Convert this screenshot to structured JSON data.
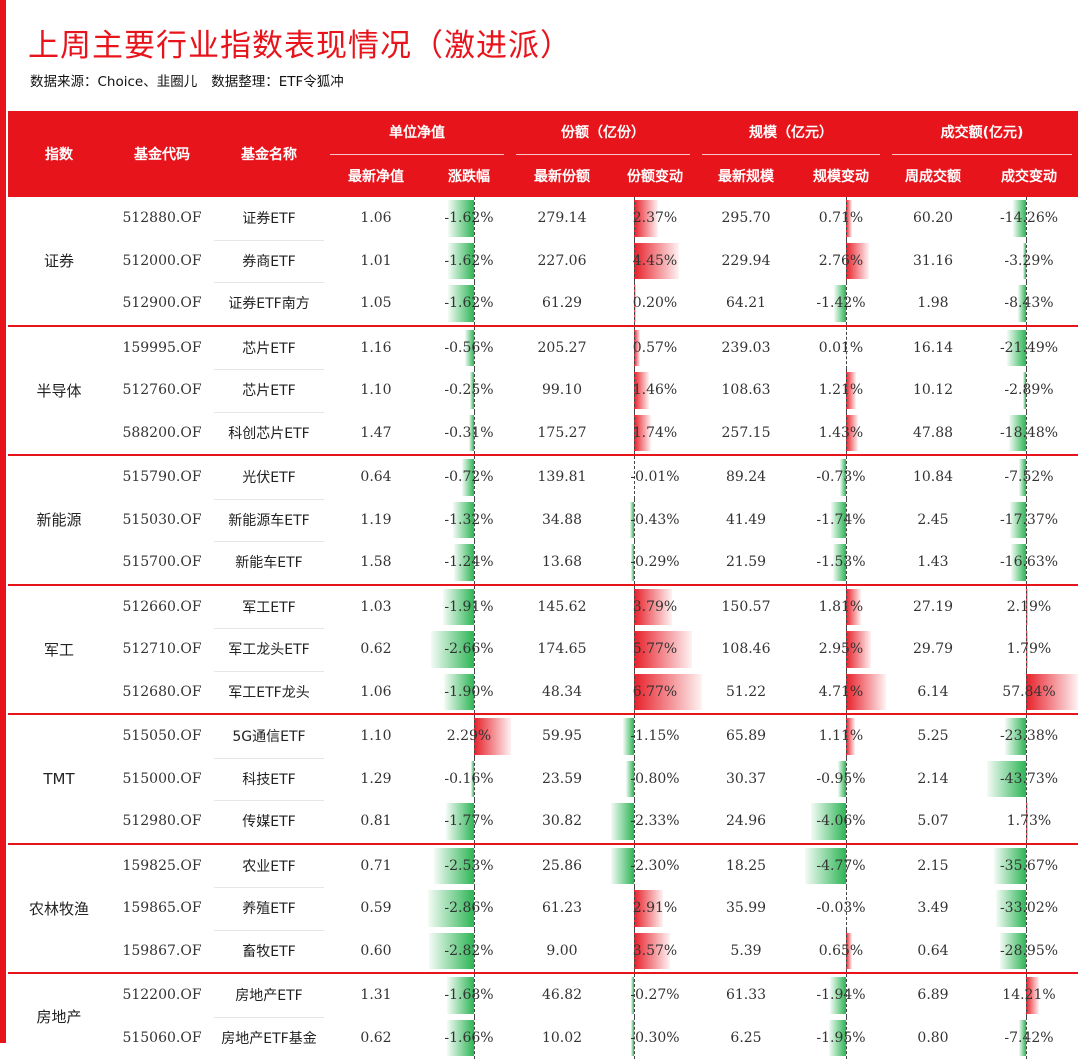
{
  "title": "上周主要行业指数表现情况（激进派）",
  "source": "数据来源：Choice、韭圈儿",
  "organizer": "数据整理：ETF令狐冲",
  "header": {
    "index": "指数",
    "code": "基金代码",
    "name": "基金名称",
    "nav_group": "单位净值",
    "nav_latest": "最新净值",
    "nav_change": "涨跌幅",
    "share_group": "份额（亿份）",
    "share_latest": "最新份额",
    "share_change": "份额变动",
    "scale_group": "规模（亿元）",
    "scale_latest": "最新规模",
    "scale_change": "规模变动",
    "volume_group": "成交额(亿元)",
    "volume_week": "周成交额",
    "volume_change": "成交变动"
  },
  "colors": {
    "accent": "#e8141c",
    "positive": "#e6141e",
    "negative": "#22b14c"
  },
  "groups": [
    {
      "name": "证券",
      "rows": [
        {
          "code": "512880.OF",
          "name": "证券ETF",
          "nav": "1.06",
          "nav_chg": "-1.62%",
          "share": "279.14",
          "share_chg": "2.37%",
          "scale": "295.70",
          "scale_chg": "0.71%",
          "vol": "60.20",
          "vol_chg": "-14.26%"
        },
        {
          "code": "512000.OF",
          "name": "券商ETF",
          "nav": "1.01",
          "nav_chg": "-1.62%",
          "share": "227.06",
          "share_chg": "4.45%",
          "scale": "229.94",
          "scale_chg": "2.76%",
          "vol": "31.16",
          "vol_chg": "-3.29%"
        },
        {
          "code": "512900.OF",
          "name": "证券ETF南方",
          "nav": "1.05",
          "nav_chg": "-1.62%",
          "share": "61.29",
          "share_chg": "0.20%",
          "scale": "64.21",
          "scale_chg": "-1.42%",
          "vol": "1.98",
          "vol_chg": "-8.43%"
        }
      ]
    },
    {
      "name": "半导体",
      "rows": [
        {
          "code": "159995.OF",
          "name": "芯片ETF",
          "nav": "1.16",
          "nav_chg": "-0.56%",
          "share": "205.27",
          "share_chg": "0.57%",
          "scale": "239.03",
          "scale_chg": "0.01%",
          "vol": "16.14",
          "vol_chg": "-21.49%"
        },
        {
          "code": "512760.OF",
          "name": "芯片ETF",
          "nav": "1.10",
          "nav_chg": "-0.25%",
          "share": "99.10",
          "share_chg": "1.46%",
          "scale": "108.63",
          "scale_chg": "1.21%",
          "vol": "10.12",
          "vol_chg": "-2.89%"
        },
        {
          "code": "588200.OF",
          "name": "科创芯片ETF",
          "nav": "1.47",
          "nav_chg": "-0.31%",
          "share": "175.27",
          "share_chg": "1.74%",
          "scale": "257.15",
          "scale_chg": "1.43%",
          "vol": "47.88",
          "vol_chg": "-18.48%"
        }
      ]
    },
    {
      "name": "新能源",
      "rows": [
        {
          "code": "515790.OF",
          "name": "光伏ETF",
          "nav": "0.64",
          "nav_chg": "-0.72%",
          "share": "139.81",
          "share_chg": "-0.01%",
          "scale": "89.24",
          "scale_chg": "-0.73%",
          "vol": "10.84",
          "vol_chg": "-7.52%"
        },
        {
          "code": "515030.OF",
          "name": "新能源车ETF",
          "nav": "1.19",
          "nav_chg": "-1.32%",
          "share": "34.88",
          "share_chg": "-0.43%",
          "scale": "41.49",
          "scale_chg": "-1.74%",
          "vol": "2.45",
          "vol_chg": "-17.37%"
        },
        {
          "code": "515700.OF",
          "name": "新能车ETF",
          "nav": "1.58",
          "nav_chg": "-1.24%",
          "share": "13.68",
          "share_chg": "-0.29%",
          "scale": "21.59",
          "scale_chg": "-1.53%",
          "vol": "1.43",
          "vol_chg": "-16.63%"
        }
      ]
    },
    {
      "name": "军工",
      "rows": [
        {
          "code": "512660.OF",
          "name": "军工ETF",
          "nav": "1.03",
          "nav_chg": "-1.91%",
          "share": "145.62",
          "share_chg": "3.79%",
          "scale": "150.57",
          "scale_chg": "1.81%",
          "vol": "27.19",
          "vol_chg": "2.19%"
        },
        {
          "code": "512710.OF",
          "name": "军工龙头ETF",
          "nav": "0.62",
          "nav_chg": "-2.66%",
          "share": "174.65",
          "share_chg": "5.77%",
          "scale": "108.46",
          "scale_chg": "2.95%",
          "vol": "29.79",
          "vol_chg": "1.79%"
        },
        {
          "code": "512680.OF",
          "name": "军工ETF龙头",
          "nav": "1.06",
          "nav_chg": "-1.90%",
          "share": "48.34",
          "share_chg": "6.77%",
          "scale": "51.22",
          "scale_chg": "4.71%",
          "vol": "6.14",
          "vol_chg": "57.84%"
        }
      ]
    },
    {
      "name": "TMT",
      "rows": [
        {
          "code": "515050.OF",
          "name": "5G通信ETF",
          "nav": "1.10",
          "nav_chg": "2.29%",
          "share": "59.95",
          "share_chg": "-1.15%",
          "scale": "65.89",
          "scale_chg": "1.11%",
          "vol": "5.25",
          "vol_chg": "-23.38%"
        },
        {
          "code": "515000.OF",
          "name": "科技ETF",
          "nav": "1.29",
          "nav_chg": "-0.16%",
          "share": "23.59",
          "share_chg": "-0.80%",
          "scale": "30.37",
          "scale_chg": "-0.95%",
          "vol": "2.14",
          "vol_chg": "-43.73%"
        },
        {
          "code": "512980.OF",
          "name": "传媒ETF",
          "nav": "0.81",
          "nav_chg": "-1.77%",
          "share": "30.82",
          "share_chg": "-2.33%",
          "scale": "24.96",
          "scale_chg": "-4.06%",
          "vol": "5.07",
          "vol_chg": "1.73%"
        }
      ]
    },
    {
      "name": "农林牧渔",
      "rows": [
        {
          "code": "159825.OF",
          "name": "农业ETF",
          "nav": "0.71",
          "nav_chg": "-2.53%",
          "share": "25.86",
          "share_chg": "-2.30%",
          "scale": "18.25",
          "scale_chg": "-4.77%",
          "vol": "2.15",
          "vol_chg": "-35.67%"
        },
        {
          "code": "159865.OF",
          "name": "养殖ETF",
          "nav": "0.59",
          "nav_chg": "-2.86%",
          "share": "61.23",
          "share_chg": "2.91%",
          "scale": "35.99",
          "scale_chg": "-0.03%",
          "vol": "3.49",
          "vol_chg": "-33.02%"
        },
        {
          "code": "159867.OF",
          "name": "畜牧ETF",
          "nav": "0.60",
          "nav_chg": "-2.82%",
          "share": "9.00",
          "share_chg": "3.57%",
          "scale": "5.39",
          "scale_chg": "0.65%",
          "vol": "0.64",
          "vol_chg": "-28.95%"
        }
      ]
    },
    {
      "name": "房地产",
      "rows": [
        {
          "code": "512200.OF",
          "name": "房地产ETF",
          "nav": "1.31",
          "nav_chg": "-1.68%",
          "share": "46.82",
          "share_chg": "-0.27%",
          "scale": "61.33",
          "scale_chg": "-1.94%",
          "vol": "6.89",
          "vol_chg": "14.21%"
        },
        {
          "code": "515060.OF",
          "name": "房地产ETF基金",
          "nav": "0.62",
          "nav_chg": "-1.66%",
          "share": "10.02",
          "share_chg": "-0.30%",
          "scale": "6.25",
          "scale_chg": "-1.95%",
          "vol": "0.80",
          "vol_chg": "-7.42%"
        }
      ]
    }
  ]
}
